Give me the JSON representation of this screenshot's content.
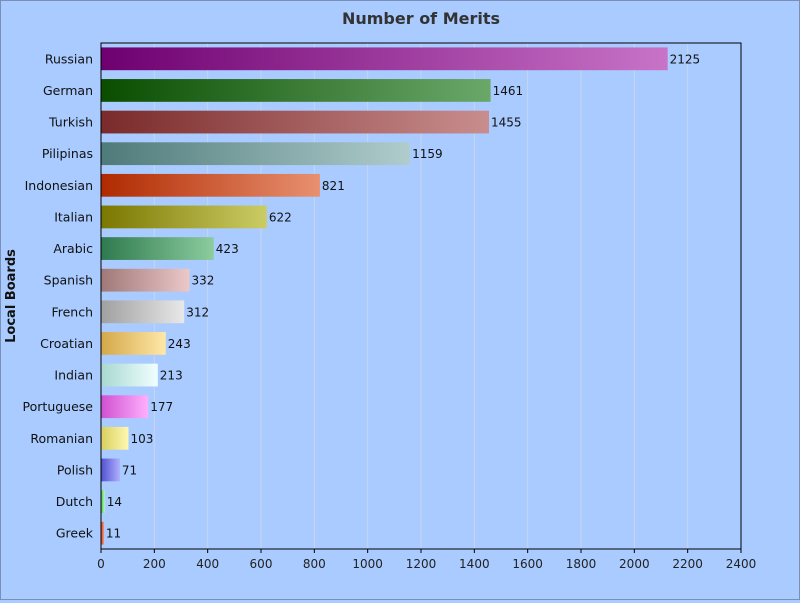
{
  "chart_data": {
    "type": "bar",
    "orientation": "horizontal",
    "title": "Number of Merits",
    "xlabel": "",
    "ylabel": "Local Boards",
    "xlim": [
      0,
      2400
    ],
    "xticks": [
      0,
      200,
      400,
      600,
      800,
      1000,
      1200,
      1400,
      1600,
      1800,
      2000,
      2200,
      2400
    ],
    "grid": true,
    "legend": "none",
    "categories": [
      "Russian",
      "German",
      "Turkish",
      "Pilipinas",
      "Indonesian",
      "Italian",
      "Arabic",
      "Spanish",
      "French",
      "Croatian",
      "Indian",
      "Portuguese",
      "Romanian",
      "Polish",
      "Dutch",
      "Greek"
    ],
    "values": [
      2125,
      1461,
      1455,
      1159,
      821,
      622,
      423,
      332,
      312,
      243,
      213,
      177,
      103,
      71,
      14,
      11
    ],
    "colors": [
      [
        "#6e0070",
        "#c873c8"
      ],
      [
        "#0a4d00",
        "#6aa86a"
      ],
      [
        "#7a2a2a",
        "#c98d8d"
      ],
      [
        "#4f7a7a",
        "#b0cccc"
      ],
      [
        "#b02a00",
        "#e89070"
      ],
      [
        "#7a7800",
        "#cccc66"
      ],
      [
        "#2e7a4e",
        "#8ccc9e"
      ],
      [
        "#a07878",
        "#ecc8c8"
      ],
      [
        "#a0a0a0",
        "#e8e8e8"
      ],
      [
        "#d4a848",
        "#ffe8a8"
      ],
      [
        "#a8d8d0",
        "#f0ffff"
      ],
      [
        "#d050d0",
        "#ffb0ff"
      ],
      [
        "#d8d060",
        "#fff8b0"
      ],
      [
        "#5050d0",
        "#b0b0ff"
      ],
      [
        "#50c050",
        "#b0ffb0"
      ],
      [
        "#d04020",
        "#ff9070"
      ]
    ]
  }
}
